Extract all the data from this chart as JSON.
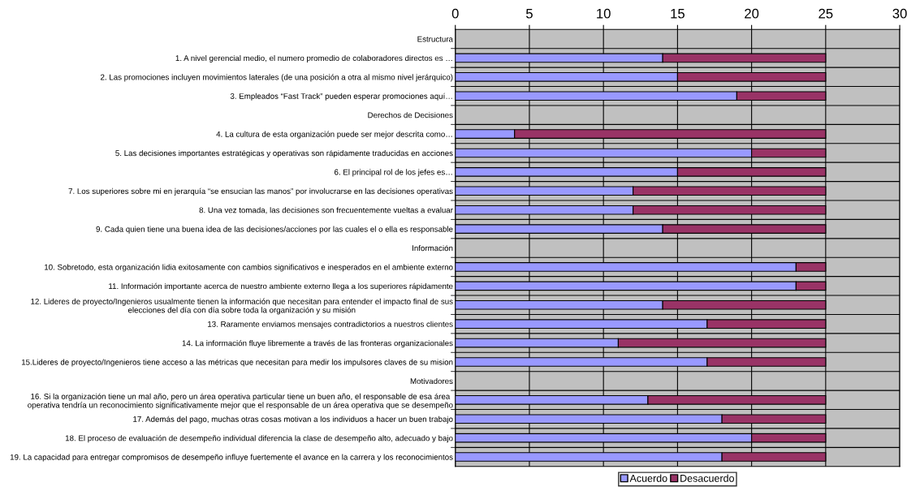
{
  "chart_data": {
    "type": "bar",
    "orientation": "horizontal",
    "stacked": true,
    "categories": [
      "Estructura",
      "1. A nivel gerencial medio, el numero promedio de colaboradores directos es …",
      "2. Las promociones incluyen movimientos laterales (de una posición a otra al mismo nivel jerárquico)",
      "3. Empleados “Fast Track” pueden esperar promociones aquí…",
      "Derechos de Decisiones",
      "4. La cultura de esta organización puede ser mejor descrita como…",
      "5. Las decisiones importantes estratégicas y operativas son rápidamente traducidas en acciones",
      "6. El principal rol de los jefes es…",
      "7. Los superiores sobre mi en jerarquía “se ensucian las manos” por involucrarse en las decisiones operativas",
      "8. Una vez tomada, las decisiones son frecuentemente vueltas a evaluar",
      "9. Cada quien tiene una buena idea de las decisiones/acciones por las cuales el o ella es responsable",
      "Información",
      "10. Sobretodo, esta organización lidia exitosamente con cambios significativos e inesperados en el ambiente externo",
      "11. Información importante acerca de nuestro ambiente externo llega a los superiores rápidamente",
      "12. Lideres de proyecto/Ingenieros usualmente tienen la información que necesitan para entender el impacto final de sus\nelecciones del día con día sobre toda la organización y su misión",
      "13. Raramente enviamos mensajes contradictorios a nuestros clientes",
      "14. La información fluye libremente a través de las fronteras organizacionales",
      "15.Lideres de proyecto/Ingenieros tiene acceso a las métricas que necesitan para medir los impulsores claves de su mision",
      "Motivadores",
      "16. Si la organización tiene un mal año, pero un área operativa particular tiene un buen año, el responsable de esa área\noperativa tendría un reconocimiento significativamente mejor que el responsable de un área operativa que se desempeño",
      "17. Además del pago, muchas otras cosas motivan a los individuos a hacer un buen trabajo",
      "18. El proceso de evaluación de desempeño individual diferencia la clase de desempeño alto, adecuado y bajo",
      "19. La capacidad para entregar compromisos de desempeño influye fuertemente el avance en la carrera y los reconocimientos"
    ],
    "series": [
      {
        "name": "Acuerdo",
        "color": "#9999ff",
        "values": [
          null,
          14,
          15,
          19,
          null,
          4,
          20,
          15,
          12,
          12,
          14,
          null,
          23,
          23,
          14,
          17,
          11,
          17,
          null,
          13,
          18,
          20,
          18
        ]
      },
      {
        "name": "Desacuerdo",
        "color": "#993366",
        "values": [
          null,
          11,
          10,
          6,
          null,
          21,
          5,
          10,
          13,
          13,
          11,
          null,
          2,
          2,
          11,
          8,
          14,
          8,
          null,
          12,
          7,
          5,
          7
        ]
      }
    ],
    "xlim": [
      0,
      30
    ],
    "xticks": [
      0,
      5,
      10,
      15,
      20,
      25,
      30
    ],
    "grid": true,
    "legend": "bottom"
  }
}
